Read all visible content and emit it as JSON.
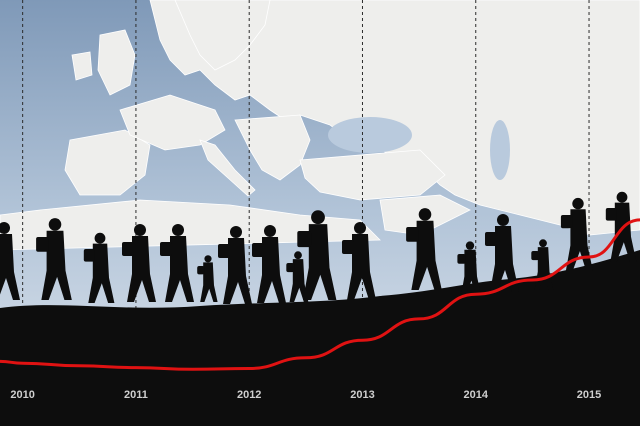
{
  "colors": {
    "sky_top": "#9fb4cc",
    "sea": "#b9cadd",
    "land": "#eeeeec",
    "border_line": "#ffffff",
    "silhouette": "#0d0d0d",
    "ground": "#0d0d0d",
    "year_line": "#2b2b2b",
    "trend_line": "#e01212",
    "tick_text": "#cfcfcf"
  },
  "background": {
    "description_icon": "europe-map-icon",
    "figures_icon": "walking-refugees-silhouette-icon"
  },
  "chart_data": {
    "type": "line",
    "title": "",
    "xlabel": "",
    "ylabel": "",
    "x_ticks": [
      "2010",
      "2011",
      "2012",
      "2013",
      "2014",
      "2015"
    ],
    "xlim": [
      2009.8,
      2015.45
    ],
    "ylim": [
      0,
      10
    ],
    "grid": {
      "x": true,
      "y": false,
      "style": "dashed-vertical"
    },
    "legend": "none",
    "series": [
      {
        "x": [
          2009.8,
          2010.0,
          2010.5,
          2011.0,
          2011.5,
          2012.0,
          2012.5,
          2013.0,
          2013.5,
          2014.0,
          2014.5,
          2015.0,
          2015.45
        ],
        "y": [
          0.6,
          0.5,
          0.35,
          0.25,
          0.15,
          0.2,
          0.8,
          1.8,
          3.0,
          4.4,
          5.2,
          6.5,
          8.6
        ]
      }
    ]
  }
}
